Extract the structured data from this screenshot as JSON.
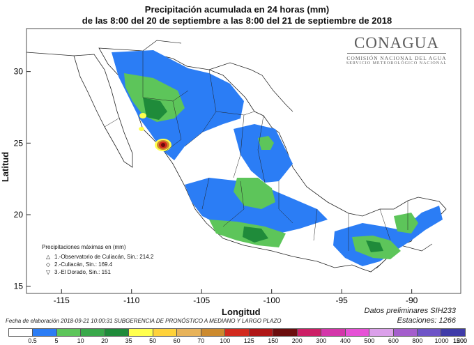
{
  "title_line1": "Precipitación acumulada en 24 horas (mm)",
  "title_line2": "de las 8:00 del 20 de septiembre a las 8:00 del 21 de septiembre de 2018",
  "x_axis": {
    "label": "Longitud",
    "ticks": [
      "-115",
      "-110",
      "-105",
      "-100",
      "-95",
      "-90"
    ],
    "range": [
      -117.5,
      -86.5
    ]
  },
  "y_axis": {
    "label": "Latitud",
    "ticks": [
      "30",
      "25",
      "20",
      "15"
    ],
    "range": [
      14.5,
      33
    ]
  },
  "logo": {
    "word": "CONAGUA",
    "sub1": "COMISIÓN NACIONAL DEL AGUA",
    "sub2": "SERVICIO METEOROLÓGICO NACIONAL"
  },
  "maxima": {
    "heading": "Precipitaciones máximas en (mm)",
    "items": [
      {
        "symbol": "triangle-up",
        "text": "1.-Observatorio de Culiacán, Sin.: 214.2"
      },
      {
        "symbol": "diamond",
        "text": "2.-Culiacán, Sin.: 169.4"
      },
      {
        "symbol": "triangle-down",
        "text": "3.-El Dorado, Sin.: 151"
      }
    ]
  },
  "prelim_line1": "Datos preliminares SIH233",
  "prelim_line2": "Estaciones:  1266",
  "footnote": "Fecha de elaboración 2018-09-21 10:00:31 SUBGERENCIA DE PRONÓSTICO A MEDIANO Y LARGO PLAZO",
  "color_scale": {
    "labels": [
      "0.5",
      "5",
      "10",
      "20",
      "35",
      "50",
      "60",
      "70",
      "100",
      "125",
      "150",
      "200",
      "300",
      "400",
      "500",
      "600",
      "800",
      "1000",
      "1200",
      "1500"
    ],
    "colors": [
      "#ffffff",
      "#2b7df5",
      "#5dc55a",
      "#39a84a",
      "#1f8b3a",
      "#ffff4d",
      "#ffd23a",
      "#e8b35a",
      "#cc8a2e",
      "#d22a1e",
      "#b01616",
      "#6b0d0d",
      "#cc1f66",
      "#d436aa",
      "#e651d6",
      "#dba0ea",
      "#a45ecc",
      "#6e54c7",
      "#3f3ba8"
    ]
  },
  "map_colors": {
    "land": "#ffffff",
    "outside": "#ffffff",
    "boundary": "#222222",
    "light_blue": "#2b7df5",
    "green_light": "#5dc55a",
    "green_mid": "#39a84a",
    "green_dark": "#1f8b3a",
    "yellow": "#ffff4d",
    "brown": "#cc8a2e",
    "red": "#d22a1e",
    "dark_red": "#6b0d0d"
  }
}
